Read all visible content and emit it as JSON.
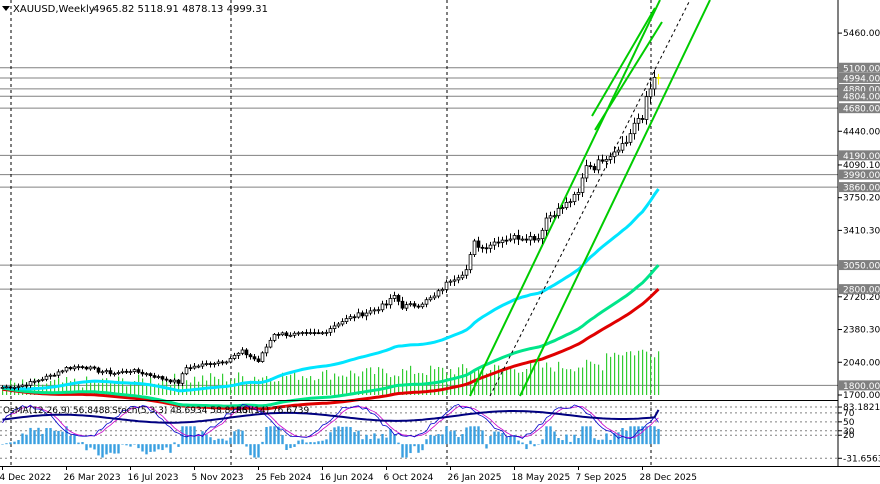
{
  "header": {
    "symbol": "XAUUSD,Weekly",
    "ohlc": "4965.82 5118.91 4878.13 4999.31"
  },
  "indicator_header": {
    "osma": "OsMA(12,26,9) 56.8488",
    "stoch": "Stoch(5,3,3) 48.6934 58.8166",
    "rsi": "RSI(14) 76.6739"
  },
  "colors": {
    "candles": "#000000",
    "level_line": "#808080",
    "ema_fast": "#00e5ff",
    "ema_mid": "#00e58a",
    "ema_slow": "#e00000",
    "channel": "#00cc00",
    "volume": "#33cc33",
    "osma": "#3aa0e0",
    "stoch_main": "#0000cc",
    "stoch_signal": "#cc00cc",
    "rsi": "#000080",
    "current_candle": "#ffff00"
  },
  "chart_data": {
    "type": "candlestick",
    "timeframe": "Weekly",
    "ylim": [
      1700,
      5700
    ],
    "price_ticks": [
      "5460.00",
      "4440.00",
      "4090.10",
      "3750.20",
      "3410.30",
      "2720.20",
      "2380.30",
      "2040.00",
      "1700.00"
    ],
    "price_levels": [
      "5100.00",
      "4994.00",
      "4880.00",
      "4804.00",
      "4680.00",
      "4190.00",
      "3990.00",
      "3860.00",
      "3050.00",
      "2800.00",
      "1800.00"
    ],
    "date_labels": [
      "4 Dec 2022",
      "26 Mar 2023",
      "16 Jul 2023",
      "5 Nov 2023",
      "25 Feb 2024",
      "16 Jun 2024",
      "6 Oct 2024",
      "26 Jan 2025",
      "18 May 2025",
      "7 Sep 2025",
      "28 Dec 2025"
    ],
    "date_positions": [
      0,
      16,
      32,
      48,
      64,
      80,
      96,
      112,
      128,
      144,
      160
    ],
    "weeks": 165,
    "period_separators": [
      2,
      57,
      111,
      162
    ],
    "close_anchors": [
      [
        0,
        1780
      ],
      [
        4,
        1790
      ],
      [
        8,
        1840
      ],
      [
        12,
        1900
      ],
      [
        16,
        1980
      ],
      [
        20,
        2000
      ],
      [
        24,
        1950
      ],
      [
        28,
        1925
      ],
      [
        32,
        1955
      ],
      [
        36,
        1920
      ],
      [
        40,
        1870
      ],
      [
        44,
        1830
      ],
      [
        46,
        1985
      ],
      [
        48,
        1995
      ],
      [
        52,
        2030
      ],
      [
        56,
        2060
      ],
      [
        60,
        2150
      ],
      [
        64,
        2050
      ],
      [
        66,
        2200
      ],
      [
        68,
        2340
      ],
      [
        72,
        2330
      ],
      [
        76,
        2330
      ],
      [
        80,
        2345
      ],
      [
        84,
        2450
      ],
      [
        88,
        2520
      ],
      [
        92,
        2570
      ],
      [
        96,
        2640
      ],
      [
        98,
        2730
      ],
      [
        100,
        2620
      ],
      [
        104,
        2640
      ],
      [
        108,
        2720
      ],
      [
        112,
        2900
      ],
      [
        114,
        2940
      ],
      [
        116,
        3000
      ],
      [
        118,
        3280
      ],
      [
        120,
        3230
      ],
      [
        124,
        3310
      ],
      [
        128,
        3340
      ],
      [
        132,
        3340
      ],
      [
        134,
        3330
      ],
      [
        136,
        3540
      ],
      [
        140,
        3650
      ],
      [
        144,
        3790
      ],
      [
        146,
        4100
      ],
      [
        148,
        4070
      ],
      [
        150,
        4160
      ],
      [
        152,
        4200
      ],
      [
        154,
        4280
      ],
      [
        156,
        4330
      ],
      [
        158,
        4520
      ],
      [
        160,
        4560
      ],
      [
        161,
        4800
      ],
      [
        162,
        4880
      ],
      [
        163,
        5000
      ],
      [
        164,
        4999
      ]
    ],
    "ema_fast_end": 3840,
    "ema_mid_end": 3050,
    "ema_slow_end": 2800,
    "indicator": {
      "levels": [
        "83.1821",
        "70",
        "50",
        "30",
        "20",
        "-31.6563"
      ],
      "osma": 56.8488,
      "stoch_main": 48.6934,
      "stoch_signal": 58.8166,
      "rsi": 76.6739
    }
  }
}
